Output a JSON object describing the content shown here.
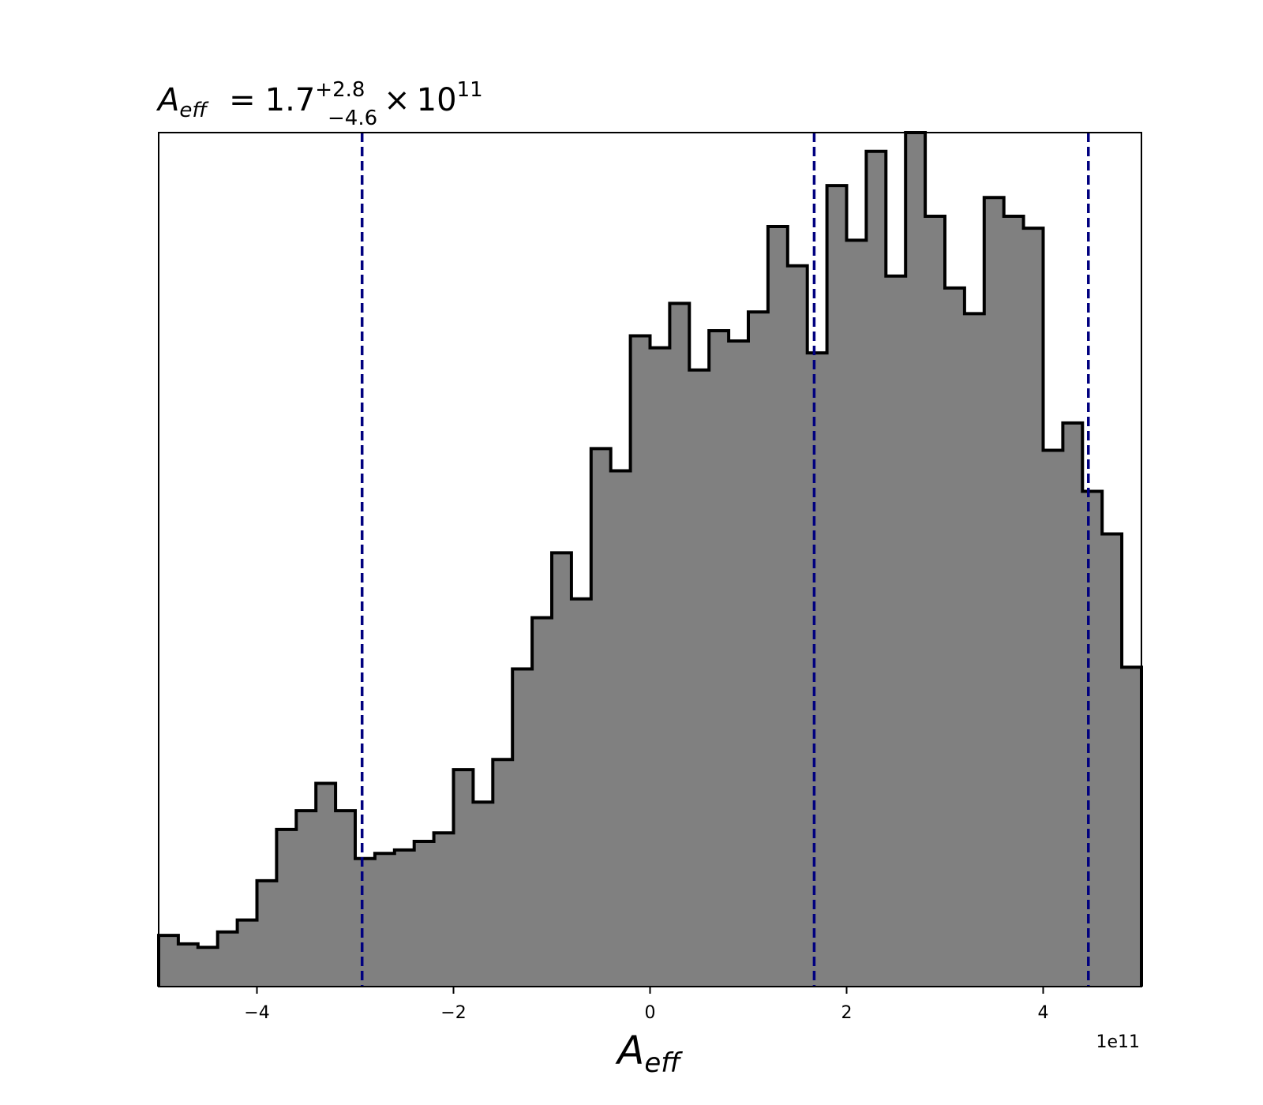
{
  "chart_data": {
    "type": "histogram",
    "title": {
      "symbol": "A",
      "symbol_subscript": "eff",
      "equals": "=",
      "value": "1.7",
      "upper_error": "+2.8",
      "lower_error": "−4.6",
      "times": "×",
      "power_base": "10",
      "power_exponent": "11"
    },
    "xlabel": {
      "symbol": "A",
      "subscript": "eff"
    },
    "x_offset_label": "1e11",
    "x_scale": 100000000000.0,
    "xlim": [
      -5.0,
      5.0
    ],
    "x_ticks": [
      -4,
      -2,
      0,
      2,
      4
    ],
    "x_tick_labels": [
      "−4",
      "−2",
      "0",
      "2",
      "4"
    ],
    "y_ticks_shown": false,
    "bin_edges": [
      -5.0,
      -4.8,
      -4.6,
      -4.4,
      -4.2,
      -4.0,
      -3.8,
      -3.6,
      -3.4,
      -3.2,
      -3.0,
      -2.8,
      -2.6,
      -2.4,
      -2.2,
      -2.0,
      -1.8,
      -1.6,
      -1.4,
      -1.2,
      -1.0,
      -0.8,
      -0.6,
      -0.4,
      -0.2,
      0.0,
      0.2,
      0.4,
      0.6,
      0.8,
      1.0,
      1.2,
      1.4,
      1.6,
      1.8,
      2.0,
      2.2,
      2.4,
      2.6,
      2.8,
      3.0,
      3.2,
      3.4,
      3.6,
      3.8,
      4.0,
      4.2,
      4.4,
      4.6,
      4.8,
      5.0
    ],
    "counts": [
      6.0,
      5.0,
      4.6,
      6.4,
      7.8,
      12.4,
      18.4,
      20.6,
      23.8,
      20.6,
      15.0,
      15.6,
      16.0,
      17.0,
      18.0,
      25.4,
      21.6,
      26.6,
      37.2,
      43.2,
      50.8,
      45.4,
      63.0,
      60.4,
      76.2,
      74.8,
      80.0,
      72.2,
      76.8,
      75.6,
      79.0,
      89.0,
      84.4,
      74.2,
      93.8,
      87.4,
      97.8,
      83.2,
      100.0,
      90.2,
      81.8,
      78.8,
      92.4,
      90.2,
      88.8,
      62.8,
      66.0,
      58.0,
      53.0,
      37.4
    ],
    "ylim": [
      0,
      100
    ],
    "quantile_lines": [
      -2.93,
      1.67,
      4.46
    ],
    "bar_fill": "#808080",
    "bar_edge": "#000000",
    "quantile_line_color": "#00007f"
  }
}
